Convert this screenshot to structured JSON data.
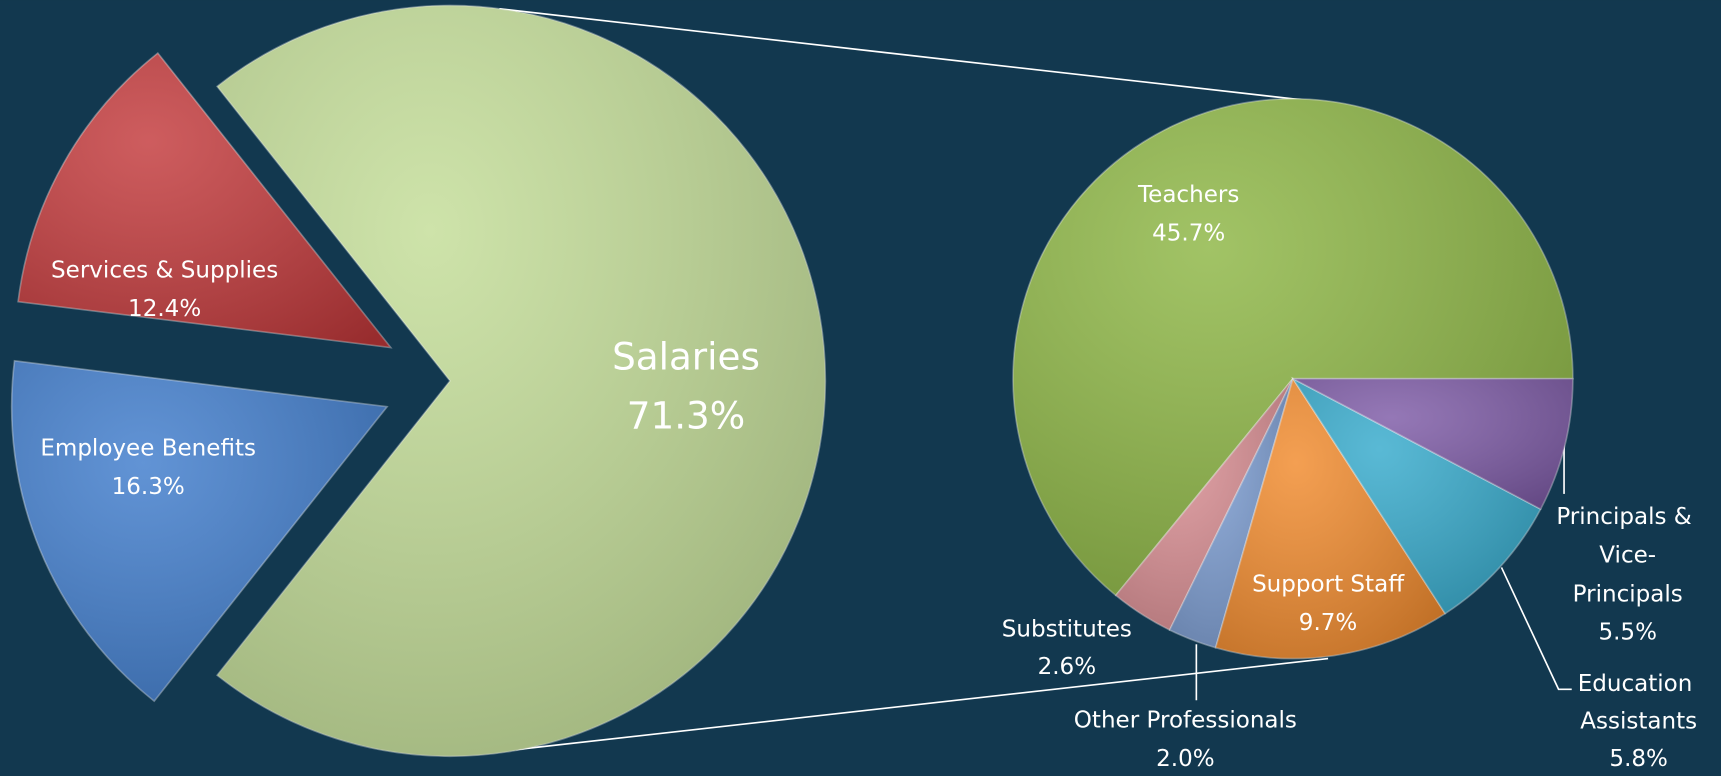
{
  "chart_data": [
    {
      "type": "pie",
      "categories": [
        "Salaries",
        "Services & Supplies",
        "Employee Benefits"
      ],
      "values": [
        71.3,
        12.4,
        16.3
      ],
      "value_labels": [
        "71.3%",
        "12.4%",
        "16.3%"
      ],
      "colors": [
        "#c3dd97",
        "#c3393b",
        "#3f7ccc"
      ]
    },
    {
      "type": "pie",
      "categories": [
        "Teachers",
        "Substitutes",
        "Other Professionals",
        "Support Staff",
        "Education Assistants",
        "Principals & Vice-Principals"
      ],
      "values": [
        45.7,
        2.6,
        2.0,
        9.7,
        5.8,
        5.5
      ],
      "value_labels": [
        "45.7%",
        "2.6%",
        "2.0%",
        "9.7%",
        "5.8%",
        "5.5%"
      ],
      "colors": [
        "#8db644",
        "#d98d92",
        "#7a9bd0",
        "#f18a2c",
        "#35aacc",
        "#7d5aa6"
      ]
    }
  ]
}
